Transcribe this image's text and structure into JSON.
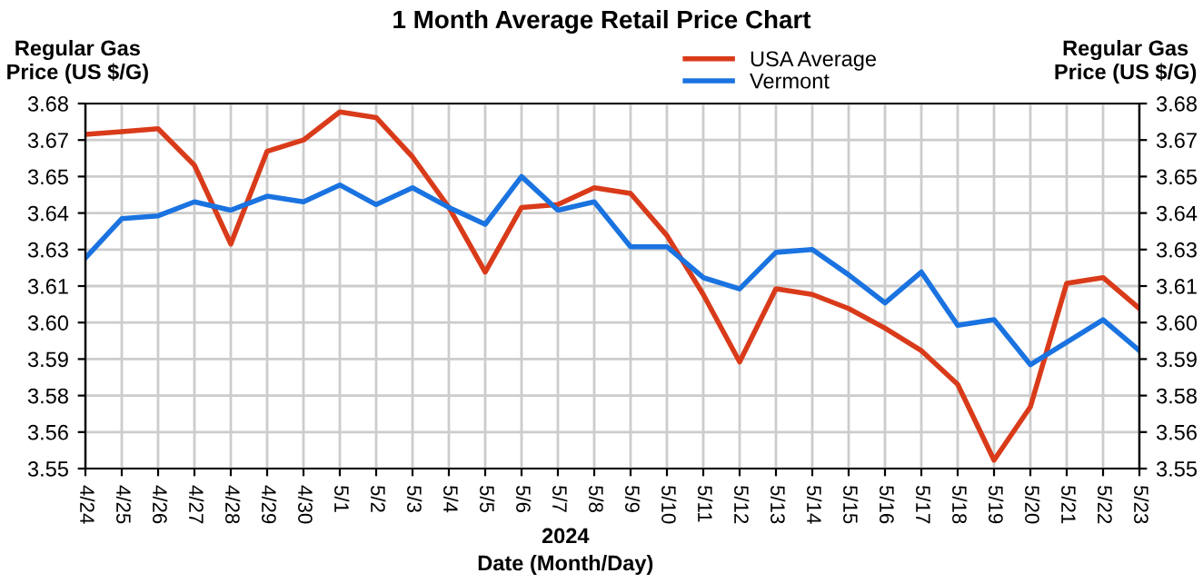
{
  "chart_data": {
    "type": "line",
    "title": "1 Month Average Retail Price Chart",
    "xlabel": "Date (Month/Day)",
    "ylabel": "Regular Gas\nPrice (US $/G)",
    "y2label": "Regular Gas\nPrice (US $/G)",
    "annotations": [
      "2024"
    ],
    "categories": [
      "4/24",
      "4/25",
      "4/26",
      "4/27",
      "4/28",
      "4/29",
      "4/30",
      "5/1",
      "5/2",
      "5/3",
      "5/4",
      "5/5",
      "5/6",
      "5/7",
      "5/8",
      "5/9",
      "5/10",
      "5/11",
      "5/12",
      "5/13",
      "5/14",
      "5/15",
      "5/16",
      "5/17",
      "5/18",
      "5/19",
      "5/20",
      "5/21",
      "5/22",
      "5/23"
    ],
    "series": [
      {
        "name": "USA Average",
        "color": "#d93b1a",
        "values": [
          3.669,
          3.67,
          3.671,
          3.658,
          3.63,
          3.663,
          3.667,
          3.677,
          3.675,
          3.661,
          3.643,
          3.62,
          3.643,
          3.644,
          3.65,
          3.648,
          3.633,
          3.612,
          3.588,
          3.614,
          3.612,
          3.607,
          3.6,
          3.592,
          3.58,
          3.553,
          3.572,
          3.616,
          3.618,
          3.607
        ]
      },
      {
        "name": "Vermont",
        "color": "#1a73e0",
        "values": [
          3.625,
          3.639,
          3.64,
          3.645,
          3.642,
          3.647,
          3.645,
          3.651,
          3.644,
          3.65,
          3.643,
          3.637,
          3.654,
          3.642,
          3.645,
          3.629,
          3.629,
          3.618,
          3.614,
          3.627,
          3.628,
          3.619,
          3.609,
          3.62,
          3.601,
          3.603,
          3.587,
          3.595,
          3.603,
          3.592
        ]
      }
    ],
    "ylim": [
      3.55,
      3.68
    ],
    "yticks": [
      {
        "value": 3.55,
        "label": "3.55"
      },
      {
        "value": 3.563,
        "label": "3.56"
      },
      {
        "value": 3.576,
        "label": "3.58"
      },
      {
        "value": 3.589,
        "label": "3.59"
      },
      {
        "value": 3.602,
        "label": "3.60"
      },
      {
        "value": 3.615,
        "label": "3.61"
      },
      {
        "value": 3.628,
        "label": "3.63"
      },
      {
        "value": 3.641,
        "label": "3.64"
      },
      {
        "value": 3.654,
        "label": "3.65"
      },
      {
        "value": 3.667,
        "label": "3.67"
      },
      {
        "value": 3.68,
        "label": "3.68"
      }
    ],
    "y2lim": [
      3.55,
      3.68
    ],
    "y2ticks": [
      {
        "value": 3.55,
        "label": "3.55"
      },
      {
        "value": 3.563,
        "label": "3.56"
      },
      {
        "value": 3.576,
        "label": "3.58"
      },
      {
        "value": 3.589,
        "label": "3.59"
      },
      {
        "value": 3.602,
        "label": "3.60"
      },
      {
        "value": 3.615,
        "label": "3.61"
      },
      {
        "value": 3.628,
        "label": "3.63"
      },
      {
        "value": 3.641,
        "label": "3.64"
      },
      {
        "value": 3.654,
        "label": "3.65"
      },
      {
        "value": 3.667,
        "label": "3.67"
      },
      {
        "value": 3.68,
        "label": "3.68"
      }
    ],
    "grid": true,
    "legend": "top",
    "marker": "none",
    "line_style": "solid"
  }
}
